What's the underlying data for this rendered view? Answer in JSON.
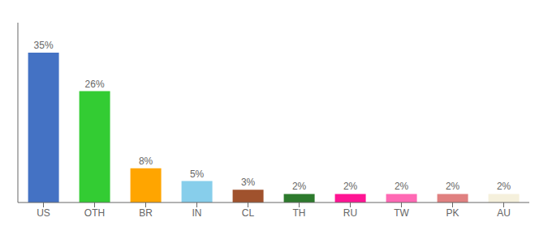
{
  "chart_data": {
    "type": "bar",
    "categories": [
      "US",
      "OTH",
      "BR",
      "IN",
      "CL",
      "TH",
      "RU",
      "TW",
      "PK",
      "AU"
    ],
    "values": [
      35,
      26,
      8,
      5,
      3,
      2,
      2,
      2,
      2,
      2
    ],
    "value_labels": [
      "35%",
      "26%",
      "8%",
      "5%",
      "3%",
      "2%",
      "2%",
      "2%",
      "2%",
      "2%"
    ],
    "colors": [
      "#4472C4",
      "#33CC33",
      "#FFA500",
      "#87CEEB",
      "#A0522D",
      "#2D7A2D",
      "#FF1493",
      "#FF69B4",
      "#E08080",
      "#F5F0DC"
    ],
    "ylim": [
      0,
      42
    ],
    "data_labels": true,
    "tick_labels": "x",
    "grid": false
  }
}
